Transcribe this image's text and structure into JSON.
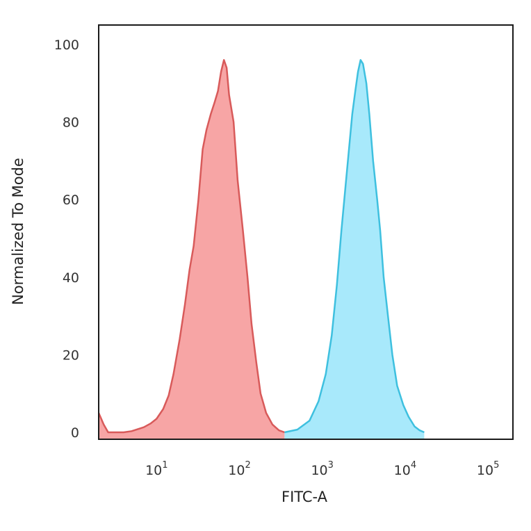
{
  "chart_data": {
    "type": "area",
    "title": "",
    "xlabel": "FITC-A",
    "ylabel": "Normalized To Mode",
    "x_scale": "log",
    "xlim": [
      2,
      200000
    ],
    "ylim": [
      0,
      105
    ],
    "x_ticks": [
      {
        "value": 10,
        "base": "10",
        "exp": "1"
      },
      {
        "value": 100,
        "base": "10",
        "exp": "2"
      },
      {
        "value": 1000,
        "base": "10",
        "exp": "3"
      },
      {
        "value": 10000,
        "base": "10",
        "exp": "4"
      },
      {
        "value": 100000,
        "base": "10",
        "exp": "5"
      }
    ],
    "y_ticks": [
      0,
      20,
      40,
      60,
      80,
      100
    ],
    "grid": false,
    "series": [
      {
        "color": "#d85a5a",
        "fill": "#f7a5a5",
        "points": [
          [
            2.0,
            5
          ],
          [
            2.3,
            2
          ],
          [
            2.6,
            0
          ],
          [
            4,
            0
          ],
          [
            5,
            0.3
          ],
          [
            7,
            1.3
          ],
          [
            8.5,
            2.3
          ],
          [
            10,
            3.5
          ],
          [
            12,
            6
          ],
          [
            14,
            9.5
          ],
          [
            16,
            15
          ],
          [
            19,
            24
          ],
          [
            22,
            33
          ],
          [
            25,
            42
          ],
          [
            28,
            48
          ],
          [
            32,
            60
          ],
          [
            36,
            73
          ],
          [
            40,
            78
          ],
          [
            45,
            82
          ],
          [
            50,
            85
          ],
          [
            55,
            88
          ],
          [
            60,
            93
          ],
          [
            65,
            96
          ],
          [
            70,
            94
          ],
          [
            75,
            87
          ],
          [
            85,
            80
          ],
          [
            95,
            65
          ],
          [
            110,
            52
          ],
          [
            125,
            40
          ],
          [
            140,
            28
          ],
          [
            160,
            18
          ],
          [
            180,
            10
          ],
          [
            210,
            5
          ],
          [
            250,
            2
          ],
          [
            300,
            0.5
          ],
          [
            350,
            0
          ]
        ]
      },
      {
        "color": "#3ec0df",
        "fill": "#a8e9fb",
        "points": [
          [
            350,
            0
          ],
          [
            500,
            0.7
          ],
          [
            700,
            3
          ],
          [
            900,
            8
          ],
          [
            1100,
            15
          ],
          [
            1300,
            25
          ],
          [
            1500,
            38
          ],
          [
            1700,
            52
          ],
          [
            1900,
            63
          ],
          [
            2100,
            73
          ],
          [
            2300,
            82
          ],
          [
            2500,
            88
          ],
          [
            2700,
            93
          ],
          [
            2900,
            96
          ],
          [
            3100,
            95
          ],
          [
            3400,
            90
          ],
          [
            3700,
            82
          ],
          [
            4100,
            70
          ],
          [
            4600,
            60
          ],
          [
            5000,
            52
          ],
          [
            5500,
            40
          ],
          [
            6200,
            30
          ],
          [
            7000,
            20
          ],
          [
            8000,
            12
          ],
          [
            9500,
            7
          ],
          [
            11000,
            4
          ],
          [
            13000,
            1.5
          ],
          [
            15000,
            0.5
          ],
          [
            17000,
            0
          ]
        ]
      }
    ]
  }
}
